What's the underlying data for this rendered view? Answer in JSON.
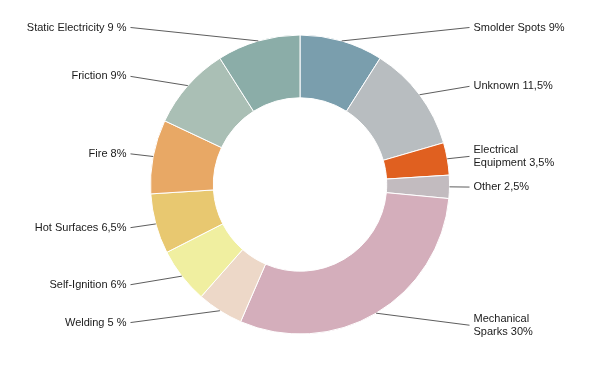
{
  "chart_data": {
    "type": "doughnut",
    "categories": [
      "Smolder Spots 9%",
      "Unknown 11,5%",
      "Electrical\nEquipment 3,5%",
      "Other 2,5%",
      "Mechanical\nSparks 30%",
      "Welding 5 %",
      "Self-Ignition 6%",
      "Hot Surfaces 6,5%",
      "Fire 8%",
      "Friction 9%",
      "Static Electricity 9 %"
    ],
    "values": [
      9,
      11.5,
      3.5,
      2.5,
      30,
      5,
      6,
      6.5,
      8,
      9,
      9
    ],
    "colors": [
      "#7A9EAD",
      "#B8BDC0",
      "#E06020",
      "#C2BBBF",
      "#D4AEBB",
      "#EDD8C8",
      "#F0EFA0",
      "#E8C870",
      "#E8A865",
      "#AABFB5",
      "#8BADA8"
    ]
  }
}
